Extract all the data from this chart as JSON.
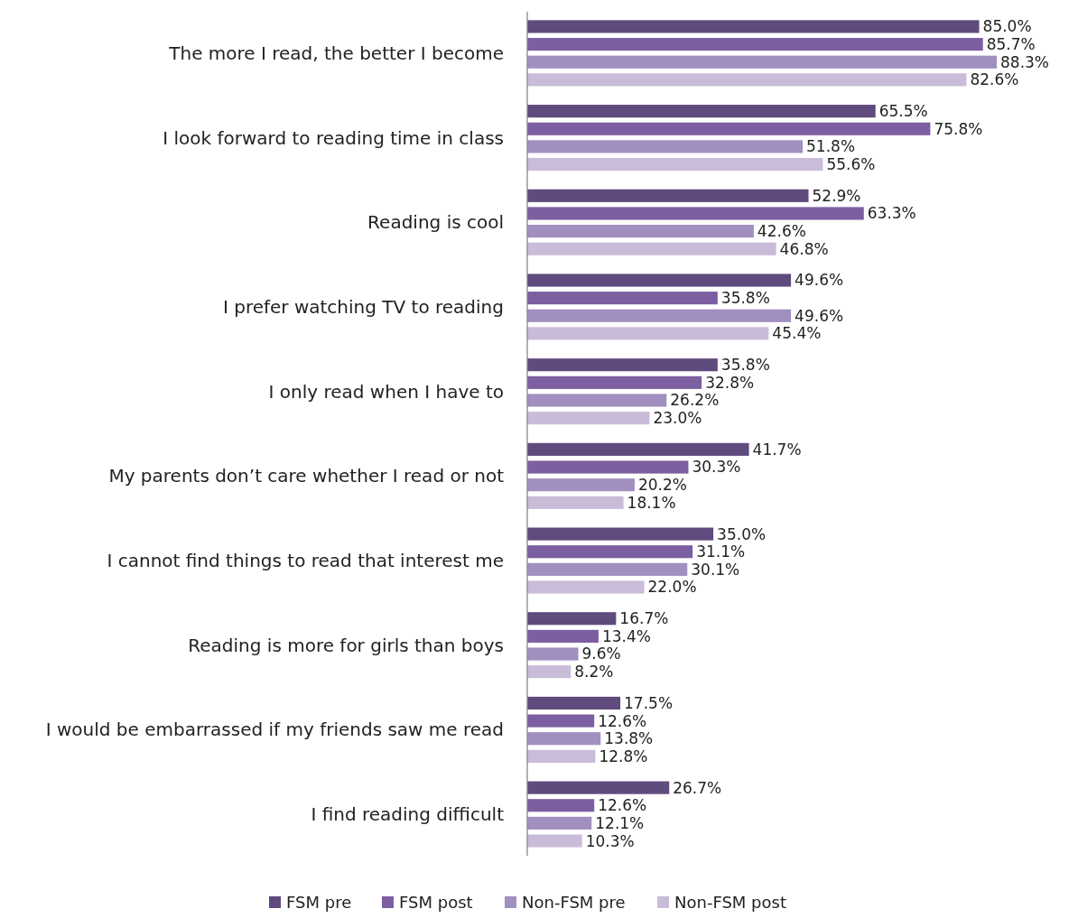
{
  "chart_data": {
    "type": "bar",
    "orientation": "horizontal",
    "categories": [
      "The more I read, the better I become",
      "I look forward to reading time in class",
      "Reading is cool",
      "I prefer watching TV to reading",
      "I only read when I have to",
      "My parents don’t care whether I read or not",
      "I cannot find things to read that interest me",
      "Reading is more for girls than boys",
      "I would be embarrassed if my friends saw me read",
      "I find reading difficult"
    ],
    "series": [
      {
        "name": "FSM pre",
        "color": "#5f4b7e",
        "values": [
          85.0,
          65.5,
          52.9,
          49.6,
          35.8,
          41.7,
          35.0,
          16.7,
          17.5,
          26.7
        ],
        "value_labels": [
          "85.0%",
          "65.5%",
          "52.9%",
          "49.6%",
          "35.8%",
          "41.7%",
          "35.0%",
          "16.7%",
          "17.5%",
          "26.7%"
        ]
      },
      {
        "name": "FSM post",
        "color": "#7b5fa0",
        "values": [
          85.7,
          75.8,
          63.3,
          35.8,
          32.8,
          30.3,
          31.1,
          13.4,
          12.6,
          12.6
        ],
        "value_labels": [
          "85.7%",
          "75.8%",
          "63.3%",
          "35.8%",
          "32.8%",
          "30.3%",
          "31.1%",
          "13.4%",
          "12.6%",
          "12.6%"
        ]
      },
      {
        "name": "Non-FSM pre",
        "color": "#a08fbf",
        "values": [
          88.3,
          51.8,
          42.6,
          49.6,
          26.2,
          20.2,
          30.1,
          9.6,
          13.8,
          12.1
        ],
        "value_labels": [
          "88.3%",
          "51.8%",
          "42.6%",
          "49.6%",
          "26.2%",
          "20.2%",
          "30.1%",
          "9.6%",
          "13.8%",
          "12.1%"
        ]
      },
      {
        "name": "Non-FSM post",
        "color": "#c9bcd8",
        "values": [
          82.6,
          55.6,
          46.8,
          45.4,
          23.0,
          18.1,
          22.0,
          8.2,
          12.8,
          10.3
        ],
        "value_labels": [
          "82.6%",
          "55.6%",
          "46.8%",
          "45.4%",
          "23.0%",
          "18.1%",
          "22.0%",
          "8.2%",
          "12.8%",
          "10.3%"
        ]
      }
    ],
    "tick_labels": "y",
    "grid": false,
    "legend": "bottom"
  }
}
